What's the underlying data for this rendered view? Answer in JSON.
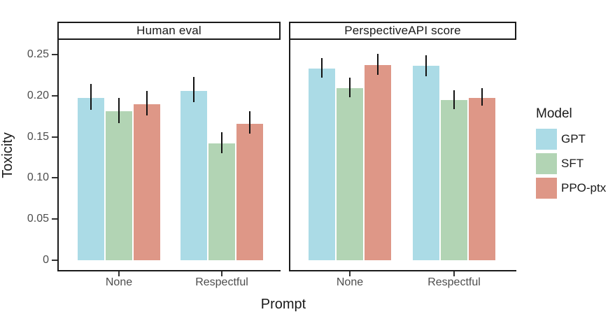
{
  "chart_data": {
    "type": "bar",
    "title": "",
    "xlabel": "Prompt",
    "ylabel": "Toxicity",
    "ylim": [
      0,
      0.27
    ],
    "grid": false,
    "error_bars": true,
    "y_ticks": [
      {
        "value": 0,
        "label": "0"
      },
      {
        "value": 0.05,
        "label": "0.05"
      },
      {
        "value": 0.1,
        "label": "0.10"
      },
      {
        "value": 0.15,
        "label": "0.15"
      },
      {
        "value": 0.2,
        "label": "0.20"
      },
      {
        "value": 0.25,
        "label": "0.25"
      }
    ],
    "categories": [
      "None",
      "Respectful"
    ],
    "legend": {
      "title": "Model",
      "position": "right"
    },
    "series": [
      {
        "name": "GPT",
        "color": "#ABDBE6"
      },
      {
        "name": "SFT",
        "color": "#B2D4B4"
      },
      {
        "name": "PPO-ptx",
        "color": "#DE9787"
      }
    ],
    "facets": [
      {
        "title": "Human eval",
        "series": [
          {
            "name": "GPT",
            "values": [
              0.197,
              0.206
            ],
            "err_low": [
              0.183,
              0.192
            ],
            "err_high": [
              0.214,
              0.223
            ]
          },
          {
            "name": "SFT",
            "values": [
              0.181,
              0.142
            ],
            "err_low": [
              0.167,
              0.13
            ],
            "err_high": [
              0.197,
              0.156
            ]
          },
          {
            "name": "PPO-ptx",
            "values": [
              0.19,
              0.166
            ],
            "err_low": [
              0.176,
              0.154
            ],
            "err_high": [
              0.206,
              0.181
            ]
          }
        ]
      },
      {
        "title": "PerspectiveAPI score",
        "series": [
          {
            "name": "GPT",
            "values": [
              0.233,
              0.236
            ],
            "err_low": [
              0.222,
              0.224
            ],
            "err_high": [
              0.246,
              0.249
            ]
          },
          {
            "name": "SFT",
            "values": [
              0.209,
              0.195
            ],
            "err_low": [
              0.198,
              0.184
            ],
            "err_high": [
              0.222,
              0.207
            ]
          },
          {
            "name": "PPO-ptx",
            "values": [
              0.237,
              0.197
            ],
            "err_low": [
              0.225,
              0.188
            ],
            "err_high": [
              0.251,
              0.209
            ]
          }
        ]
      }
    ]
  }
}
